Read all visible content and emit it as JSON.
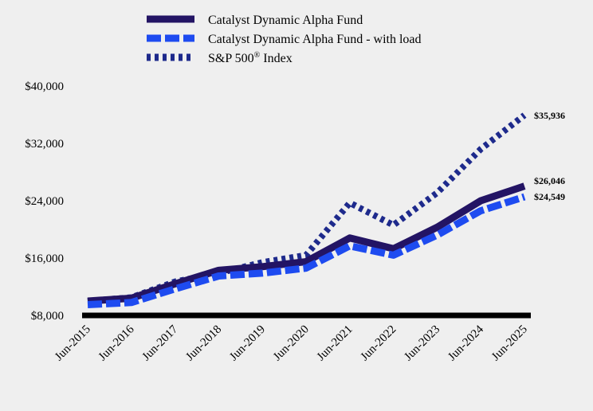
{
  "chart_data": {
    "type": "line",
    "categories": [
      "Jun-2015",
      "Jun-2016",
      "Jun-2017",
      "Jun-2018",
      "Jun-2019",
      "Jun-2020",
      "Jun-2021",
      "Jun-2022",
      "Jun-2023",
      "Jun-2024",
      "Jun-2025"
    ],
    "y_ticks": [
      "$8,000",
      "$16,000",
      "$24,000",
      "$32,000",
      "$40,000"
    ],
    "y_tick_values": [
      8000,
      16000,
      24000,
      32000,
      40000
    ],
    "ylim": [
      8000,
      40000
    ],
    "grid": false,
    "legend_position": "top-center",
    "series": [
      {
        "name": "Catalyst Dynamic Alpha Fund",
        "color": "#231464",
        "style": "solid",
        "values": [
          10000,
          10400,
          12400,
          14300,
          14800,
          15500,
          18800,
          17300,
          20300,
          24000,
          26046
        ],
        "end_label": "$26,046"
      },
      {
        "name": "Catalyst Dynamic Alpha Fund - with load",
        "color": "#1e4bf0",
        "style": "dashed",
        "values": [
          9500,
          9800,
          11700,
          13500,
          13900,
          14600,
          17700,
          16400,
          19200,
          22600,
          24549
        ],
        "end_label": "$24,549"
      },
      {
        "name": "S&P 500® Index",
        "color": "#1e2a8c",
        "style": "dotted",
        "values": [
          10000,
          10500,
          12700,
          13900,
          15400,
          16400,
          23700,
          20600,
          25100,
          31200,
          35936
        ],
        "end_label": "$35,936"
      }
    ]
  }
}
